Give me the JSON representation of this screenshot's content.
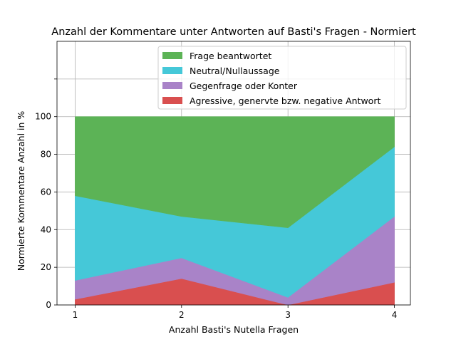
{
  "chart_data": {
    "type": "area",
    "stacked": true,
    "title": "Anzahl der Kommentare unter Antworten auf Basti's Fragen - Normiert",
    "xlabel": "Anzahl Basti's Nutella Fragen",
    "ylabel": "Normierte Kommentare Anzahl in %",
    "x": [
      1,
      2,
      3,
      4
    ],
    "xlim": [
      0.83,
      4.15
    ],
    "ylim": [
      0,
      140
    ],
    "xticks": [
      1,
      2,
      3,
      4
    ],
    "yticks": [
      0,
      20,
      40,
      60,
      80,
      100
    ],
    "grid": true,
    "legend_position": "top-center",
    "series": [
      {
        "name": "Agressive, genervte bzw. negative Antwort",
        "values": [
          3,
          14,
          0,
          12
        ],
        "color": "#d94f4f"
      },
      {
        "name": "Gegenfrage oder Konter",
        "values": [
          10,
          11,
          4,
          35
        ],
        "color": "#a983c8"
      },
      {
        "name": "Neutral/Nullaussage",
        "values": [
          45,
          22,
          37,
          37
        ],
        "color": "#45c8d8"
      },
      {
        "name": "Frage beantwortet",
        "values": [
          42,
          53,
          59,
          16
        ],
        "color": "#5cb356"
      }
    ],
    "legend_order": [
      3,
      2,
      1,
      0
    ]
  }
}
